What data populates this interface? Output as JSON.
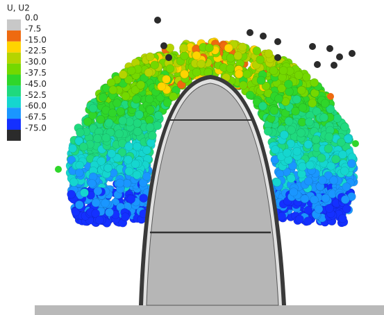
{
  "legend": {
    "title": "U, U2",
    "labels": [
      "0.0",
      "-7.5",
      "-15.0",
      "-22.5",
      "-30.0",
      "-37.5",
      "-45.0",
      "-52.5",
      "-60.0",
      "-67.5",
      "-75.0"
    ],
    "colors": [
      "#c8c8c8",
      "#ee6a10",
      "#ffd400",
      "#b5d400",
      "#74d800",
      "#2fd62a",
      "#1fd97e",
      "#15d6cf",
      "#1a96ff",
      "#1430ff",
      "#2b2b2b"
    ]
  }
}
